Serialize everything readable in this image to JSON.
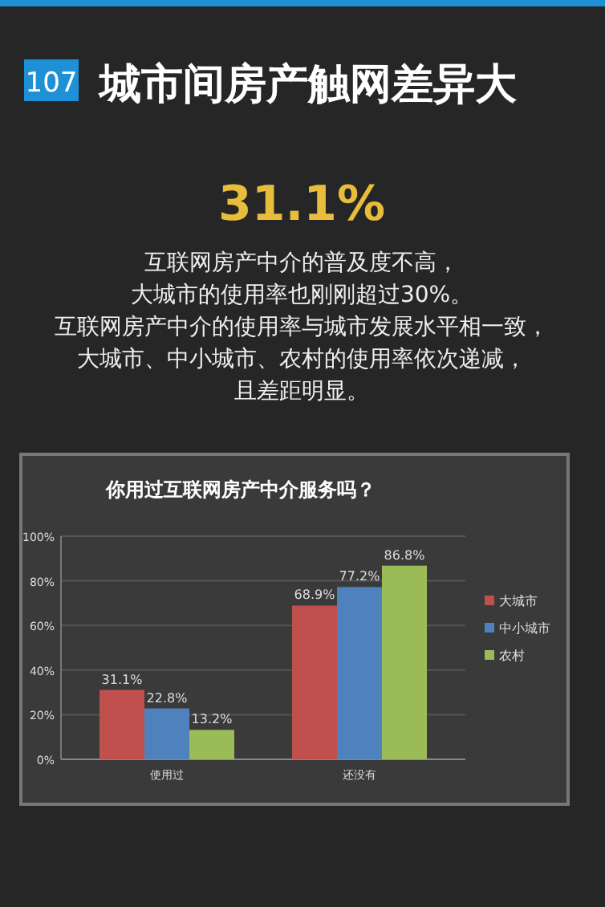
{
  "chart_data": {
    "type": "bar",
    "title": "城市间房产触网差异大",
    "subtitle": "你用过互联网房产中介服务吗？",
    "annotations": [
      "107",
      "31.1%",
      "互联网房产中介的普及度不高，",
      "大城市的使用率也刚刚超过30%。",
      "互联网房产中介的使用率与城市发展水平相一致，",
      "大城市、中小城市、农村的使用率依次递减，",
      "且差距明显。"
    ],
    "categories": [
      "使用过",
      "还没有"
    ],
    "series": [
      {
        "name": "大城市",
        "color": "#c0504d",
        "values": [
          31.1,
          68.9
        ],
        "value_labels": [
          "31.1%",
          "68.9%"
        ]
      },
      {
        "name": "中小城市",
        "color": "#4f81bd",
        "values": [
          22.8,
          77.2
        ],
        "value_labels": [
          "22.8%",
          "77.2%"
        ]
      },
      {
        "name": "农村",
        "color": "#9bbb59",
        "values": [
          13.2,
          86.8
        ],
        "value_labels": [
          "13.2%",
          "86.8%"
        ]
      }
    ],
    "ylim": [
      0,
      100
    ],
    "yticks": [
      {
        "value": 0,
        "label": "0%"
      },
      {
        "value": 20,
        "label": "20%"
      },
      {
        "value": 40,
        "label": "40%"
      },
      {
        "value": 60,
        "label": "60%"
      },
      {
        "value": 80,
        "label": "80%"
      },
      {
        "value": 100,
        "label": "100%"
      }
    ],
    "grid": "y",
    "legend": "right"
  }
}
